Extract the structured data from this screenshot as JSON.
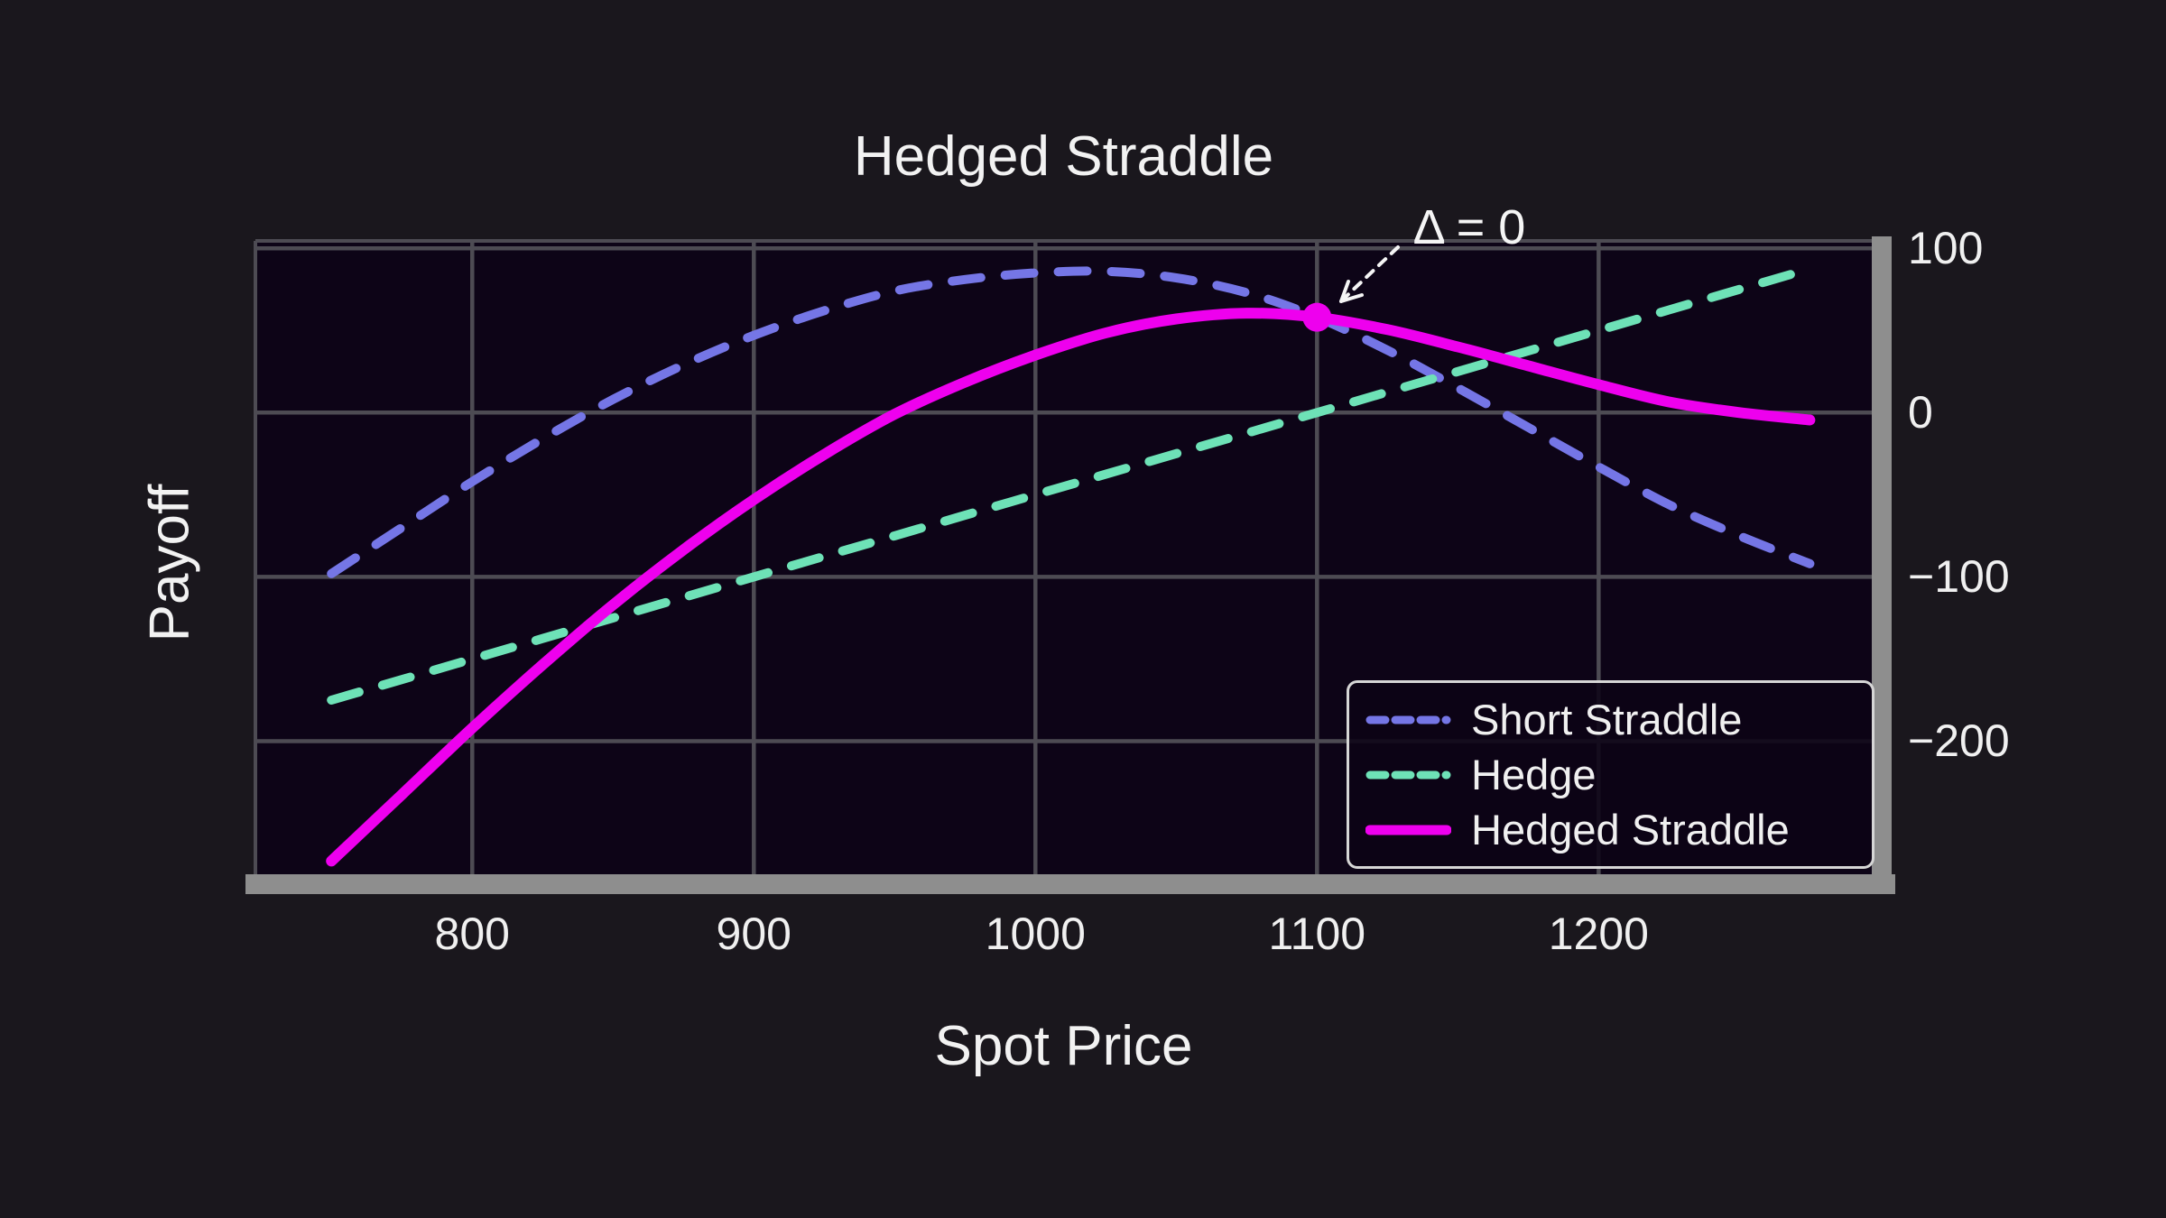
{
  "figure": {
    "background_color": "#1a171d",
    "plot_background_color": "#0d0417",
    "grid_color": "#4d4b53",
    "spine_color": "#8e8e8e",
    "text_color": "#f2f2f2",
    "legend_border_color": "#d6d6d6"
  },
  "chart_data": {
    "type": "line",
    "title": "Hedged Straddle",
    "xlabel": "Spot Price",
    "ylabel": "Payoff",
    "xlim": [
      723,
      1297
    ],
    "ylim": [
      -281,
      104.5
    ],
    "x_ticks": [
      800,
      900,
      1000,
      1100,
      1200
    ],
    "x_tick_labels": [
      "800",
      "900",
      "1000",
      "1100",
      "1200"
    ],
    "y_ticks": [
      100,
      0,
      -100,
      -200
    ],
    "y_tick_labels": [
      "100",
      "0",
      "−100",
      "−200"
    ],
    "grid": true,
    "legend_position": "lower right",
    "x": [
      750,
      775,
      800,
      825,
      850,
      875,
      900,
      925,
      950,
      975,
      1000,
      1025,
      1050,
      1075,
      1100,
      1125,
      1150,
      1175,
      1200,
      1225,
      1250,
      1275
    ],
    "series": [
      {
        "name": "Short Straddle",
        "color": "#7576e6",
        "linestyle": "dashed",
        "linewidth": 10,
        "values": [
          -98,
          -70,
          -42,
          -16,
          8,
          29,
          47,
          62,
          74,
          81,
          85,
          86,
          82,
          73,
          58,
          38,
          15,
          -9,
          -33,
          -56,
          -75,
          -92
        ]
      },
      {
        "name": "Hedge",
        "color": "#6ee2b7",
        "linestyle": "dashed",
        "linewidth": 10,
        "values": [
          -175,
          -162.5,
          -150,
          -137.5,
          -125,
          -112.5,
          -100,
          -87.5,
          -75,
          -62.5,
          -50,
          -37.5,
          -25,
          -12.5,
          0,
          12.5,
          25,
          37.5,
          50,
          62.5,
          75,
          87.5
        ]
      },
      {
        "name": "Hedged Straddle",
        "color": "#ee00ee",
        "linestyle": "solid",
        "linewidth": 12,
        "values": [
          -273,
          -232.5,
          -192,
          -153.5,
          -117,
          -83.5,
          -53,
          -25.5,
          -1,
          18.5,
          35,
          48.5,
          57,
          60.5,
          58,
          50.5,
          40,
          28.5,
          17,
          6.5,
          0,
          -4.5
        ]
      }
    ],
    "annotation": {
      "text": "Δ = 0",
      "x": 1100,
      "y": 58,
      "marker_color": "#ee00ee",
      "arrow_color": "#f5f5f5"
    }
  }
}
